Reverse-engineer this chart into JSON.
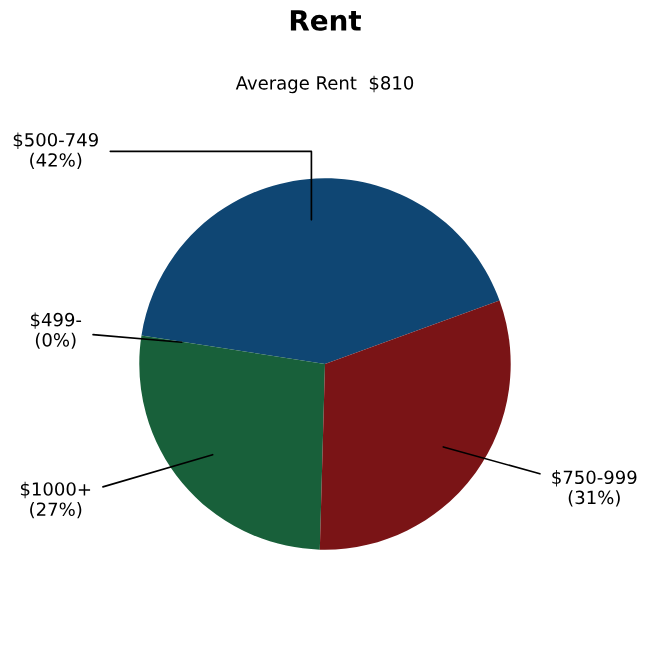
{
  "chart_data": {
    "type": "pie",
    "title": "Rent",
    "subtitle": "Average Rent  $810",
    "categories": [
      "$500-749",
      "$499-",
      "$1000+",
      "$750-999"
    ],
    "values": [
      42,
      0,
      27,
      31
    ],
    "value_labels": [
      "(42%)",
      "(0%)",
      "(27%)",
      "(31%)"
    ],
    "colors": [
      "#0f4673",
      "#7f7f7f",
      "#18603a",
      "#7a1416"
    ],
    "legend": false
  }
}
